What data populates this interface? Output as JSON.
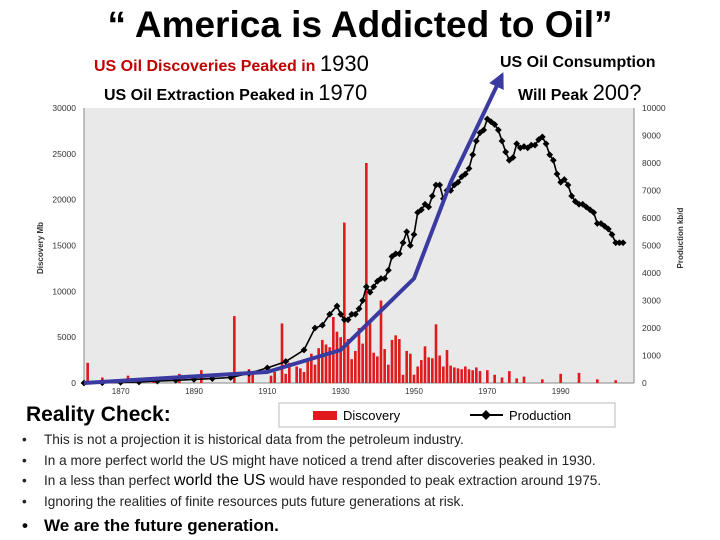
{
  "title": "“ America is Addicted to Oil”",
  "headers": {
    "discoveries": {
      "text": "US Oil Discoveries Peaked in",
      "year": "1930"
    },
    "extraction": {
      "text": "US Oil Extraction Peaked in",
      "year": "1970"
    },
    "consumption": {
      "line1": "US Oil Consumption",
      "line2": "Will Peak",
      "year": "200?"
    }
  },
  "colors": {
    "discovery": "#e0191c",
    "production": "#000000",
    "arrow": "#3a3aa0",
    "plot_bg": "#e9e9e9"
  },
  "chart_data": {
    "type": "bar",
    "title": "",
    "ylabel": "Discovery Mb",
    "ylabel_right": "Production kb/d",
    "xlim": [
      1860,
      2010
    ],
    "ylim": [
      0,
      30000
    ],
    "ylim_right": [
      0,
      10000
    ],
    "x_ticks": [
      "1870",
      "1890",
      "1910",
      "1930",
      "1950",
      "1970",
      "1990"
    ],
    "x_tick_values": [
      1870,
      1890,
      1910,
      1930,
      1950,
      1970,
      1990
    ],
    "y_ticks": [
      "0",
      "5000",
      "10000",
      "15000",
      "20000",
      "25000",
      "30000"
    ],
    "y_tick_values": [
      0,
      5000,
      10000,
      15000,
      20000,
      25000,
      30000
    ],
    "y_ticks_right": [
      "0",
      "1000",
      "2000",
      "3000",
      "4000",
      "5000",
      "6000",
      "7000",
      "8000",
      "9000",
      "10000"
    ],
    "y_tick_values_right": [
      0,
      1000,
      2000,
      3000,
      4000,
      5000,
      6000,
      7000,
      8000,
      9000,
      10000
    ],
    "legend": [
      "Discovery",
      "Production"
    ],
    "legend_position": "bottom",
    "discovery": {
      "name": "Discovery",
      "years": [
        1861,
        1865,
        1872,
        1879,
        1886,
        1892,
        1901,
        1905,
        1906,
        1911,
        1912,
        1914,
        1915,
        1916,
        1918,
        1919,
        1920,
        1921,
        1922,
        1923,
        1924,
        1925,
        1926,
        1927,
        1928,
        1929,
        1930,
        1931,
        1932,
        1933,
        1934,
        1935,
        1936,
        1937,
        1938,
        1939,
        1940,
        1941,
        1942,
        1943,
        1944,
        1945,
        1946,
        1947,
        1948,
        1949,
        1950,
        1951,
        1952,
        1953,
        1954,
        1955,
        1956,
        1957,
        1958,
        1959,
        1960,
        1961,
        1962,
        1963,
        1964,
        1965,
        1966,
        1967,
        1968,
        1970,
        1972,
        1974,
        1976,
        1978,
        1980,
        1985,
        1990,
        1995,
        2000,
        2005
      ],
      "values": [
        2200,
        600,
        800,
        400,
        1000,
        1400,
        7300,
        1500,
        1000,
        800,
        1200,
        6500,
        1000,
        2200,
        1800,
        1600,
        1200,
        2600,
        3200,
        2000,
        3800,
        4700,
        4200,
        3900,
        7200,
        5600,
        5000,
        17500,
        4800,
        2600,
        3500,
        6000,
        4300,
        24000,
        6600,
        3300,
        2900,
        9000,
        3700,
        2000,
        4700,
        5200,
        4800,
        900,
        3500,
        3200,
        900,
        1800,
        2500,
        4000,
        2800,
        2700,
        6400,
        3000,
        1800,
        3600,
        1900,
        1700,
        1600,
        1500,
        1800,
        1500,
        1400,
        1700,
        1300,
        1400,
        900,
        600,
        1300,
        500,
        700,
        400,
        1000,
        1100,
        400,
        300
      ]
    },
    "production": {
      "name": "Production",
      "years": [
        1860,
        1865,
        1870,
        1875,
        1880,
        1885,
        1890,
        1895,
        1900,
        1905,
        1910,
        1915,
        1920,
        1923,
        1925,
        1927,
        1929,
        1930,
        1931,
        1932,
        1933,
        1934,
        1935,
        1936,
        1937,
        1938,
        1939,
        1940,
        1941,
        1942,
        1943,
        1944,
        1945,
        1946,
        1947,
        1948,
        1949,
        1950,
        1951,
        1952,
        1953,
        1954,
        1955,
        1956,
        1957,
        1958,
        1959,
        1960,
        1961,
        1962,
        1963,
        1964,
        1965,
        1966,
        1967,
        1968,
        1969,
        1970,
        1971,
        1972,
        1973,
        1974,
        1975,
        1976,
        1977,
        1978,
        1979,
        1980,
        1981,
        1982,
        1983,
        1984,
        1985,
        1986,
        1987,
        1988,
        1989,
        1990,
        1991,
        1992,
        1993,
        1994,
        1995,
        1996,
        1997,
        1998,
        1999,
        2000,
        2001,
        2002,
        2003,
        2004,
        2005,
        2006,
        2007
      ],
      "values": [
        0,
        10,
        20,
        35,
        70,
        100,
        130,
        160,
        200,
        350,
        550,
        780,
        1200,
        2000,
        2100,
        2500,
        2800,
        2500,
        2300,
        2300,
        2500,
        2500,
        2700,
        3000,
        3500,
        3300,
        3500,
        3700,
        3800,
        3800,
        4100,
        4600,
        4700,
        4700,
        5100,
        5500,
        5000,
        5400,
        6200,
        6300,
        6500,
        6400,
        6800,
        7200,
        7200,
        6700,
        7000,
        7000,
        7200,
        7300,
        7500,
        7600,
        7800,
        8300,
        8800,
        9100,
        9200,
        9600,
        9500,
        9400,
        9200,
        8800,
        8400,
        8100,
        8200,
        8700,
        8550,
        8600,
        8550,
        8650,
        8650,
        8850,
        8950,
        8700,
        8300,
        8100,
        7600,
        7300,
        7400,
        7200,
        6800,
        6600,
        6500,
        6500,
        6400,
        6300,
        6200,
        5800,
        5800,
        5700,
        5600,
        5400,
        5100,
        5100,
        5100
      ]
    },
    "trend": {
      "name": "US Oil Consumption projection",
      "years": [
        1860,
        1910,
        1930,
        1950,
        1960,
        1974
      ],
      "values": [
        0,
        400,
        1200,
        3800,
        7300,
        11200
      ]
    }
  },
  "reality": {
    "heading": "Reality Check:",
    "bullets": [
      "This is not a projection it is historical data from the petroleum industry.",
      "In a more perfect world the US might have noticed a trend after discoveries peaked in 1930."
    ],
    "bullet3": {
      "a": "In a less than perfect ",
      "b": "world the US",
      "c": " would have responded to peak extraction around 1975."
    },
    "bullet4": "Ignoring the realities of finite resources puts future generations at risk.",
    "final": "We are the future generation."
  }
}
